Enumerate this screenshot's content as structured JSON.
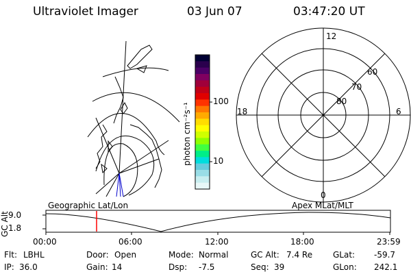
{
  "header": {
    "instrument": "Ultraviolet Imager",
    "date": "03 Jun 07",
    "time": "03:47:20 UT"
  },
  "colorbar": {
    "unit_label": "photon cm⁻²s⁻¹",
    "ticks": [
      "100",
      "10"
    ],
    "colors": [
      "#000033",
      "#2a004d",
      "#4b0066",
      "#800060",
      "#a0003a",
      "#c00018",
      "#e00000",
      "#ff3300",
      "#ff7700",
      "#ffaa00",
      "#ffdd00",
      "#ffff00",
      "#d0ff00",
      "#90ff00",
      "#40ff40",
      "#00ee88",
      "#00dddd",
      "#66ccdd",
      "#99dde6",
      "#c8eef0",
      "#e8f8f8"
    ]
  },
  "polar_plot": {
    "mlt_labels": {
      "top": "12",
      "left": "18",
      "right": "6",
      "bottom": "0"
    },
    "lat_labels": [
      "60",
      "70",
      "80"
    ]
  },
  "timeline": {
    "left_label": "Geographic Lat/Lon",
    "right_label": "Apex MLat/MLT",
    "y_axis_label": "GC Alt",
    "y_ticks": [
      "9.0",
      "1.8"
    ],
    "x_ticks": [
      "00:00",
      "06:00",
      "12:00",
      "18:00",
      "23:59"
    ],
    "marker_color": "#ff0000"
  },
  "info": {
    "row1": [
      {
        "key": "Flt:",
        "value": "LBHL"
      },
      {
        "key": "Door:",
        "value": "Open"
      },
      {
        "key": "Mode:",
        "value": "Normal"
      },
      {
        "key": "GC Alt:",
        "value": "7.4 Re"
      },
      {
        "key": "GLat:",
        "value": "-59.7"
      }
    ],
    "row2": [
      {
        "key": "IP:",
        "value": "36.0"
      },
      {
        "key": "Gain:",
        "value": "14"
      },
      {
        "key": "Dsp:",
        "value": "-7.5"
      },
      {
        "key": "Seq:",
        "value": "39"
      },
      {
        "key": "GLon:",
        "value": "242.1"
      }
    ]
  }
}
